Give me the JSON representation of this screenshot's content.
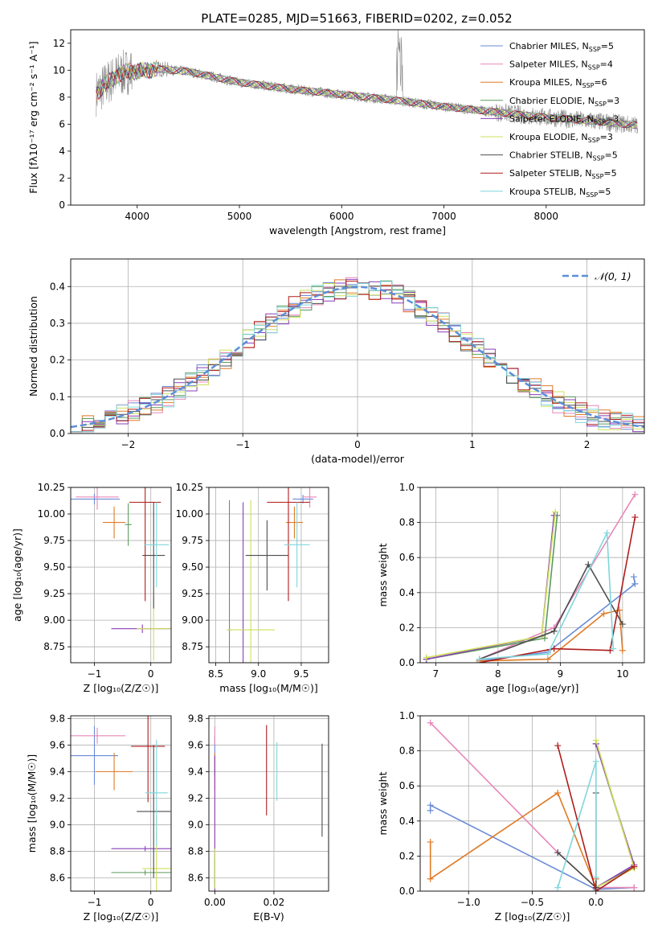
{
  "figure": {
    "title": "PLATE=0285, MJD=51663, FIBERID=0202, z=0.052"
  },
  "models": [
    {
      "name": "Chabrier MILES, N",
      "sub": "SSP",
      "suffix": "=5",
      "color": "#6a8bd6"
    },
    {
      "name": "Salpeter MILES, N",
      "sub": "SSP",
      "suffix": "=4",
      "color": "#e886b8"
    },
    {
      "name": "Kroupa MILES, N",
      "sub": "SSP",
      "suffix": "=6",
      "color": "#e07b26"
    },
    {
      "name": "Chabrier ELODIE, N",
      "sub": "SSP",
      "suffix": "=3",
      "color": "#5c9a5c"
    },
    {
      "name": "Salpeter ELODIE, N",
      "sub": "SSP",
      "suffix": "=3",
      "color": "#8a3fb5"
    },
    {
      "name": "Kroupa ELODIE, N",
      "sub": "SSP",
      "suffix": "=3",
      "color": "#cde05a"
    },
    {
      "name": "Chabrier STELIB, N",
      "sub": "SSP",
      "suffix": "=5",
      "color": "#4d4d4d"
    },
    {
      "name": "Salpeter STELIB, N",
      "sub": "SSP",
      "suffix": "=5",
      "color": "#b01c1c"
    },
    {
      "name": "Kroupa STELIB, N",
      "sub": "SSP",
      "suffix": "=5",
      "color": "#7fd6dc"
    }
  ],
  "chart_data": [
    {
      "id": "spectrum",
      "type": "line",
      "xlabel": "wavelength [Angstrom, rest frame]",
      "ylabel": "Flux [fλ10⁻¹⁷ erg cm⁻² s⁻¹ A⁻¹]",
      "xlim": [
        3350,
        8960
      ],
      "ylim": [
        0,
        13
      ],
      "xticks": [
        4000,
        5000,
        6000,
        7000,
        8000
      ],
      "yticks": [
        0,
        2,
        4,
        6,
        8,
        10,
        12
      ],
      "data_color": "#8c8c8c",
      "continuum": {
        "x": [
          3600,
          3700,
          3800,
          3900,
          4000,
          4200,
          4500,
          5000,
          5500,
          6000,
          6500,
          7000,
          7500,
          8000,
          8500,
          8900
        ],
        "y": [
          8.3,
          9.0,
          9.6,
          9.9,
          9.9,
          10.1,
          9.9,
          9.1,
          8.6,
          8.2,
          7.8,
          7.3,
          6.9,
          6.5,
          6.2,
          5.9
        ]
      }
    },
    {
      "id": "residuals",
      "type": "histogram",
      "xlabel": "(data-model)/error",
      "ylabel": "Normed distribution",
      "xlim": [
        -2.5,
        2.5
      ],
      "ylim": [
        0,
        0.475
      ],
      "xticks": [
        -2,
        -1,
        0,
        1,
        2
      ],
      "yticks": [
        0.0,
        0.1,
        0.2,
        0.3,
        0.4
      ],
      "bin_width": 0.1,
      "gaussian": {
        "label": "𝒩(0, 1)",
        "color": "#5b8fd8",
        "mean": 0,
        "sigma": 1
      }
    },
    {
      "id": "age-vs-Z",
      "type": "errorbar",
      "xlabel": "Z [log₁₀(Z/Z☉)]",
      "ylabel": "age  [log₁₀(age/yr)]",
      "xlim": [
        -1.42,
        0.36
      ],
      "ylim": [
        8.6,
        10.25
      ],
      "xticks": [
        -1,
        0
      ],
      "yticks": [
        8.75,
        9.0,
        9.25,
        9.5,
        9.75,
        10.0,
        10.25
      ],
      "points": [
        {
          "x": -1.0,
          "y": 10.14,
          "xerr": 0.45,
          "yerr": 0.05
        },
        {
          "x": -0.95,
          "y": 10.16,
          "xerr": 0.38,
          "yerr": 0.12
        },
        {
          "x": -0.65,
          "y": 9.92,
          "xerr": 0.2,
          "yerr": 0.15
        },
        {
          "x": -0.4,
          "y": 9.9,
          "xerr": 0.06,
          "yerr": 0.2
        },
        {
          "x": -0.15,
          "y": 8.92,
          "xerr": 0.55,
          "yerr": 0.04
        },
        {
          "x": 0.05,
          "y": 8.92,
          "xerr": 0.3,
          "yerr": 0.3
        },
        {
          "x": 0.05,
          "y": 9.61,
          "xerr": 0.2,
          "yerr": 0.5
        },
        {
          "x": -0.1,
          "y": 10.11,
          "xerr": 0.28,
          "yerr": 0.93
        },
        {
          "x": 0.1,
          "y": 9.71,
          "xerr": 0.22,
          "yerr": 0.4
        }
      ]
    },
    {
      "id": "age-vs-mass",
      "type": "errorbar",
      "xlabel": "mass [log₁₀(M/M☉)]",
      "ylabel": "",
      "xlim": [
        8.42,
        9.82
      ],
      "ylim": [
        8.6,
        10.25
      ],
      "xticks": [
        8.5,
        9.0,
        9.5
      ],
      "yticks": [
        8.75,
        9.0,
        9.25,
        9.5,
        9.75,
        10.0,
        10.25
      ],
      "points": [
        {
          "x": 9.52,
          "y": 10.14,
          "xerr": 0.12,
          "yerr": 0.04
        },
        {
          "x": 9.6,
          "y": 10.16,
          "xerr": 0.08,
          "yerr": 0.1
        },
        {
          "x": 9.42,
          "y": 9.92,
          "xerr": 0.1,
          "yerr": 0.15
        },
        {
          "x": 8.66,
          "y": 8.91,
          "xerr": 0.03,
          "yerr": 1.22
        },
        {
          "x": 8.82,
          "y": 8.91,
          "xerr": 0.02,
          "yerr": 1.2
        },
        {
          "x": 8.91,
          "y": 8.91,
          "xerr": 0.28,
          "yerr": 1.22
        },
        {
          "x": 9.1,
          "y": 9.61,
          "xerr": 0.25,
          "yerr": 0.33
        },
        {
          "x": 9.35,
          "y": 10.11,
          "xerr": 0.25,
          "yerr": 0.93
        },
        {
          "x": 9.45,
          "y": 9.71,
          "xerr": 0.15,
          "yerr": 0.4
        }
      ]
    },
    {
      "id": "weight-vs-age",
      "type": "line",
      "xlabel": "age  [log₁₀(age/yr)]",
      "ylabel": "mass weight",
      "xlim": [
        6.75,
        10.35
      ],
      "ylim": [
        0,
        1.0
      ],
      "xticks": [
        7,
        8,
        9,
        10
      ],
      "yticks": [
        0.0,
        0.2,
        0.4,
        0.6,
        0.8,
        1.0
      ],
      "series": [
        {
          "x": [
            7.7,
            8.8,
            10.2,
            10.18
          ],
          "y": [
            0.01,
            0.06,
            0.45,
            0.49
          ]
        },
        {
          "x": [
            7.7,
            8.9,
            10.2
          ],
          "y": [
            0.02,
            0.2,
            0.96
          ]
        },
        {
          "x": [
            7.7,
            8.8,
            9.7,
            9.95,
            10.0
          ],
          "y": [
            0.01,
            0.02,
            0.28,
            0.3,
            0.07
          ]
        },
        {
          "x": [
            6.85,
            8.75,
            8.95
          ],
          "y": [
            0.02,
            0.14,
            0.84
          ]
        },
        {
          "x": [
            6.85,
            8.7,
            8.9
          ],
          "y": [
            0.02,
            0.15,
            0.84
          ]
        },
        {
          "x": [
            6.85,
            8.7,
            8.92
          ],
          "y": [
            0.03,
            0.15,
            0.86
          ]
        },
        {
          "x": [
            7.7,
            8.9,
            9.45,
            10.0
          ],
          "y": [
            0.02,
            0.18,
            0.56,
            0.22
          ]
        },
        {
          "x": [
            7.7,
            8.9,
            9.8,
            10.2
          ],
          "y": [
            0.0,
            0.08,
            0.07,
            0.83
          ]
        },
        {
          "x": [
            7.7,
            8.8,
            9.75,
            9.85
          ],
          "y": [
            0.02,
            0.05,
            0.74,
            0.08
          ]
        }
      ]
    },
    {
      "id": "mass-vs-Z",
      "type": "errorbar",
      "xlabel": "Z [log₁₀(Z/Z☉)]",
      "ylabel": "mass [log₁₀(M/M☉)]",
      "xlim": [
        -1.42,
        0.36
      ],
      "ylim": [
        8.5,
        9.82
      ],
      "xticks": [
        -1,
        0
      ],
      "yticks": [
        8.6,
        8.8,
        9.0,
        9.2,
        9.4,
        9.6,
        9.8
      ],
      "points": [
        {
          "x": -1.0,
          "y": 9.52,
          "xerr": 0.42,
          "yerr": 0.22
        },
        {
          "x": -0.95,
          "y": 9.67,
          "xerr": 0.5,
          "yerr": 0.06
        },
        {
          "x": -0.65,
          "y": 9.4,
          "xerr": 0.33,
          "yerr": 0.14
        },
        {
          "x": -0.1,
          "y": 8.64,
          "xerr": 0.6,
          "yerr": 0.02
        },
        {
          "x": -0.1,
          "y": 8.82,
          "xerr": 0.6,
          "yerr": 0.02
        },
        {
          "x": 0.1,
          "y": 8.67,
          "xerr": 0.25,
          "yerr": 0.4
        },
        {
          "x": 0.05,
          "y": 9.1,
          "xerr": 0.3,
          "yerr": 0.5
        },
        {
          "x": -0.05,
          "y": 9.59,
          "xerr": 0.3,
          "yerr": 0.42
        },
        {
          "x": 0.1,
          "y": 9.24,
          "xerr": 0.2,
          "yerr": 0.4
        }
      ]
    },
    {
      "id": "mass-vs-EBV",
      "type": "errorbar",
      "xlabel": "E(B-V)",
      "ylabel": "",
      "xlim": [
        -0.002,
        0.0385
      ],
      "ylim": [
        8.5,
        9.82
      ],
      "xticks": [
        0.0,
        0.02
      ],
      "yticks": [
        8.6,
        8.8,
        9.0,
        9.2,
        9.4,
        9.6,
        9.8
      ],
      "points": [
        {
          "x": 0.0,
          "y": 9.52,
          "xerr": 0.0,
          "yerr": 0.15
        },
        {
          "x": 0.0,
          "y": 9.67,
          "xerr": 0.0,
          "yerr": 0.07
        },
        {
          "x": 0.0,
          "y": 9.4,
          "xerr": 0.0,
          "yerr": 0.14
        },
        {
          "x": 0.0,
          "y": 8.64,
          "xerr": 0.0,
          "yerr": 0.1
        },
        {
          "x": 0.0,
          "y": 8.82,
          "xerr": 0.0,
          "yerr": 0.7
        },
        {
          "x": 0.0,
          "y": 8.67,
          "xerr": 0.0,
          "yerr": 0.15
        },
        {
          "x": 0.0363,
          "y": 9.26,
          "xerr": 0.0,
          "yerr": 0.35
        },
        {
          "x": 0.0175,
          "y": 9.41,
          "xerr": 0.0,
          "yerr": 0.34
        },
        {
          "x": 0.021,
          "y": 9.4,
          "xerr": 0.0,
          "yerr": 0.22
        }
      ]
    },
    {
      "id": "weight-vs-Z",
      "type": "line",
      "xlabel": "Z [log₁₀(Z/Z☉)]",
      "ylabel": "mass weight",
      "xlim": [
        -1.38,
        0.38
      ],
      "ylim": [
        0,
        1.0
      ],
      "xticks": [
        -1.0,
        -0.5,
        0.0
      ],
      "yticks": [
        0.0,
        0.2,
        0.4,
        0.6,
        0.8,
        1.0
      ],
      "series": [
        {
          "x": [
            -1.3,
            -1.3,
            0.0,
            0.3
          ],
          "y": [
            0.46,
            0.49,
            0.01,
            0.02
          ]
        },
        {
          "x": [
            -1.3,
            -0.3,
            0.0,
            0.3
          ],
          "y": [
            0.96,
            0.22,
            0.02,
            0.02
          ]
        },
        {
          "x": [
            -1.3,
            -1.3,
            -0.3,
            0.0,
            0.0
          ],
          "y": [
            0.28,
            0.07,
            0.56,
            0.02,
            0.07
          ]
        },
        {
          "x": [
            0.0,
            0.3,
            0.0
          ],
          "y": [
            0.84,
            0.14,
            0.02
          ]
        },
        {
          "x": [
            0.0,
            0.3,
            0.0
          ],
          "y": [
            0.84,
            0.15,
            0.02
          ]
        },
        {
          "x": [
            0.0,
            0.3,
            0.0
          ],
          "y": [
            0.86,
            0.13,
            0.02
          ]
        },
        {
          "x": [
            -0.3,
            0.0,
            0.0,
            0.0
          ],
          "y": [
            0.22,
            0.02,
            0.56,
            0.02
          ]
        },
        {
          "x": [
            -0.3,
            0.0,
            0.3
          ],
          "y": [
            0.83,
            0.0,
            0.14
          ]
        },
        {
          "x": [
            -0.3,
            0.0,
            0.0
          ],
          "y": [
            0.02,
            0.74,
            0.08
          ]
        }
      ]
    }
  ]
}
